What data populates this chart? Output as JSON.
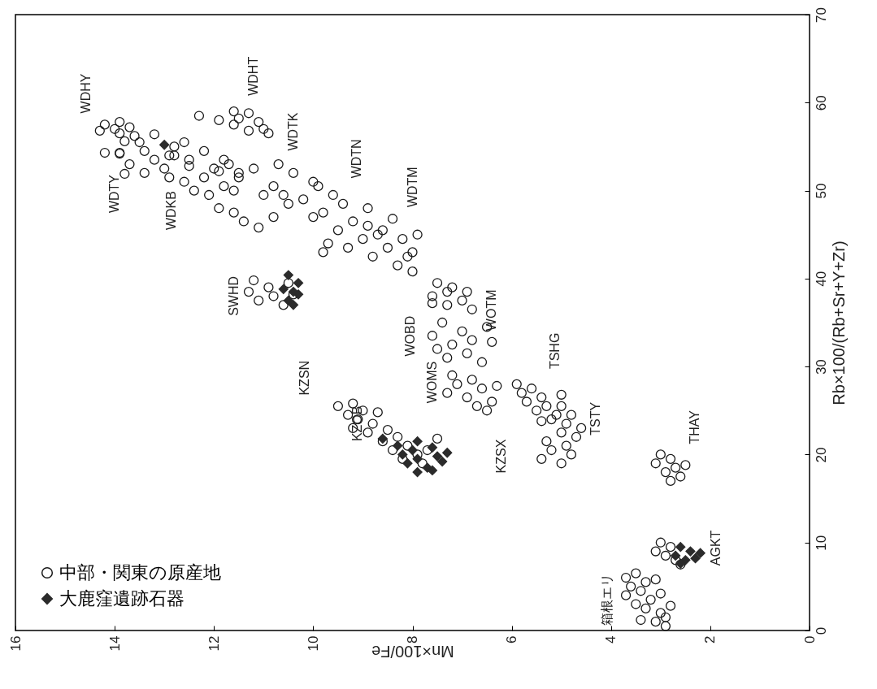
{
  "chart_data": {
    "type": "scatter",
    "xlabel": "Mn×100/Fe",
    "ylabel": "Rb×100/(Rb+Sr+Y+Zr)",
    "xlim": [
      16,
      0
    ],
    "xticks": [
      16,
      14,
      12,
      10,
      8,
      6,
      4,
      2,
      0
    ],
    "ylim": [
      0,
      70
    ],
    "yticks": [
      0,
      10,
      20,
      30,
      40,
      50,
      60,
      70
    ],
    "legend": "bottom left",
    "series": [
      {
        "name": "中部・関東の原産地",
        "color": "#1a1a1a",
        "marker": "circle",
        "values": [
          57.5,
          57.0,
          56.5,
          57.2,
          56.2,
          57.8,
          56.8,
          55.6,
          56.4,
          55.5,
          54.5,
          53.5,
          52.5,
          54.0,
          53.0,
          52.0,
          55.0,
          51.5,
          54.2,
          52.8,
          54.3,
          54.3,
          51.9,
          58.5,
          58.0,
          57.5,
          58.8,
          57.0,
          56.5,
          57.8,
          58.2,
          56.8,
          59.0,
          55.5,
          54.5,
          53.5,
          52.5,
          51.5,
          50.5,
          53.0,
          51.0,
          49.5,
          52.0,
          54.0,
          50.0,
          53.5,
          52.5,
          51.5,
          50.5,
          49.5,
          48.5,
          47.5,
          46.5,
          49.0,
          52.0,
          51.0,
          53.0,
          48.0,
          50.0,
          47.0,
          45.8,
          52.2,
          49.5,
          50.5,
          49.5,
          48.5,
          47.5,
          46.5,
          45.5,
          44.5,
          43.5,
          42.5,
          46.0,
          44.0,
          48.0,
          45.0,
          43.0,
          47.0,
          46.8,
          45.5,
          44.5,
          43.5,
          42.5,
          41.5,
          40.8,
          45.0,
          43.0,
          39.8,
          39.0,
          38.5,
          38.0,
          37.5,
          37.0,
          39.5,
          38.2,
          25.5,
          25.0,
          24.5,
          24.0,
          23.5,
          23.0,
          24.8,
          22.5,
          25.8,
          22.8,
          22.0,
          21.5,
          21.0,
          20.5,
          20.0,
          19.5,
          19.0,
          21.8,
          20.5,
          39.5,
          39.0,
          38.5,
          38.0,
          37.5,
          37.0,
          36.5,
          38.5,
          37.2,
          35.0,
          34.0,
          33.5,
          33.0,
          32.5,
          32.0,
          31.5,
          31.0,
          30.5,
          34.5,
          32.8,
          29.0,
          28.5,
          28.0,
          27.5,
          27.0,
          26.5,
          26.0,
          25.5,
          27.8,
          25.0,
          28.0,
          27.5,
          27.0,
          26.5,
          26.0,
          25.5,
          25.0,
          24.5,
          26.8,
          25.5,
          24.5,
          24.0,
          23.5,
          23.0,
          22.5,
          22.0,
          21.5,
          21.0,
          20.5,
          20.0,
          19.5,
          19.0,
          23.8,
          20.0,
          19.5,
          19.0,
          18.5,
          18.0,
          17.5,
          17.0,
          18.8,
          10.0,
          9.5,
          9.0,
          8.5,
          8.0,
          7.5,
          6.5,
          6.0,
          5.5,
          5.0,
          4.5,
          4.0,
          3.5,
          3.0,
          2.5,
          2.0,
          1.5,
          1.0,
          0.5,
          2.8,
          4.2,
          5.8,
          1.2
        ],
        "x": [
          14.2,
          14.0,
          13.9,
          13.7,
          13.6,
          13.9,
          14.3,
          13.8,
          13.2,
          13.5,
          13.4,
          13.2,
          13.0,
          12.9,
          13.7,
          13.4,
          12.8,
          12.9,
          13.9,
          12.5,
          14.2,
          13.9,
          13.8,
          12.3,
          11.9,
          11.6,
          11.3,
          11.0,
          10.9,
          11.1,
          11.5,
          11.3,
          11.6,
          12.6,
          12.2,
          12.5,
          12.0,
          12.2,
          11.8,
          11.7,
          12.6,
          12.1,
          11.5,
          12.8,
          12.4,
          11.8,
          11.2,
          11.5,
          10.8,
          11.0,
          10.5,
          11.6,
          11.4,
          10.2,
          10.4,
          10.0,
          10.7,
          11.9,
          11.6,
          10.8,
          11.1,
          11.9,
          10.6,
          9.9,
          9.6,
          9.4,
          9.8,
          9.2,
          9.5,
          9.0,
          9.3,
          8.8,
          8.9,
          9.7,
          8.9,
          8.7,
          9.8,
          10.0,
          8.4,
          8.6,
          8.2,
          8.5,
          8.1,
          8.3,
          8.0,
          7.9,
          8.0,
          11.2,
          10.9,
          11.3,
          10.8,
          11.1,
          10.6,
          10.5,
          10.4,
          9.5,
          9.0,
          9.3,
          9.1,
          8.8,
          9.2,
          8.7,
          8.9,
          9.2,
          8.5,
          8.3,
          8.6,
          8.1,
          8.4,
          7.9,
          8.2,
          7.8,
          7.5,
          7.7,
          7.5,
          7.2,
          6.9,
          7.6,
          7.0,
          7.3,
          6.8,
          7.3,
          7.6,
          7.4,
          7.0,
          7.6,
          6.8,
          7.2,
          7.5,
          6.9,
          7.3,
          6.6,
          6.5,
          6.4,
          7.2,
          6.8,
          7.1,
          6.6,
          7.3,
          6.9,
          6.4,
          6.7,
          6.3,
          6.5,
          5.9,
          5.6,
          5.8,
          5.4,
          5.7,
          5.3,
          5.5,
          5.1,
          5.0,
          5.0,
          4.8,
          5.2,
          4.9,
          4.6,
          5.0,
          4.7,
          5.3,
          4.9,
          5.2,
          4.8,
          5.4,
          5.0,
          5.4,
          3.0,
          2.8,
          3.1,
          2.7,
          2.9,
          2.6,
          2.8,
          2.5,
          3.0,
          2.8,
          3.1,
          2.9,
          2.7,
          2.6,
          3.5,
          3.7,
          3.3,
          3.6,
          3.4,
          3.7,
          3.2,
          3.5,
          3.3,
          3.0,
          2.9,
          3.1,
          2.9,
          2.8,
          3.0,
          3.1,
          3.4
        ]
      },
      {
        "name": "大鹿窪遺跡石器",
        "color": "#2b2b2b",
        "marker": "diamond",
        "values": [
          55.2,
          40.4,
          39.5,
          38.8,
          38.2,
          37.5,
          37.0,
          38.5,
          21.8,
          21.0,
          20.5,
          20.0,
          19.5,
          19.0,
          18.5,
          18.0,
          20.8,
          19.8,
          21.5,
          20.2,
          19.2,
          18.2,
          9.5,
          9.0,
          8.5,
          8.0,
          8.8,
          7.6,
          8.2
        ],
        "x": [
          13.0,
          10.5,
          10.3,
          10.6,
          10.3,
          10.5,
          10.4,
          10.4,
          8.6,
          8.3,
          8.0,
          8.2,
          7.9,
          8.1,
          7.7,
          7.9,
          7.6,
          7.5,
          7.9,
          7.3,
          7.4,
          7.6,
          2.6,
          2.4,
          2.7,
          2.5,
          2.2,
          2.6,
          2.3
        ]
      }
    ],
    "annotations": [
      "WDHY",
      "WDHT",
      "WDTK",
      "WDTN",
      "WDTM",
      "WDTY",
      "WDKB",
      "SWHD",
      "KZSN",
      "KZOB",
      "WOBD",
      "WOMS",
      "WOTM",
      "TSHG",
      "TSTY",
      "KZSX",
      "THAY",
      "AGKT",
      "箱根エリ"
    ]
  }
}
